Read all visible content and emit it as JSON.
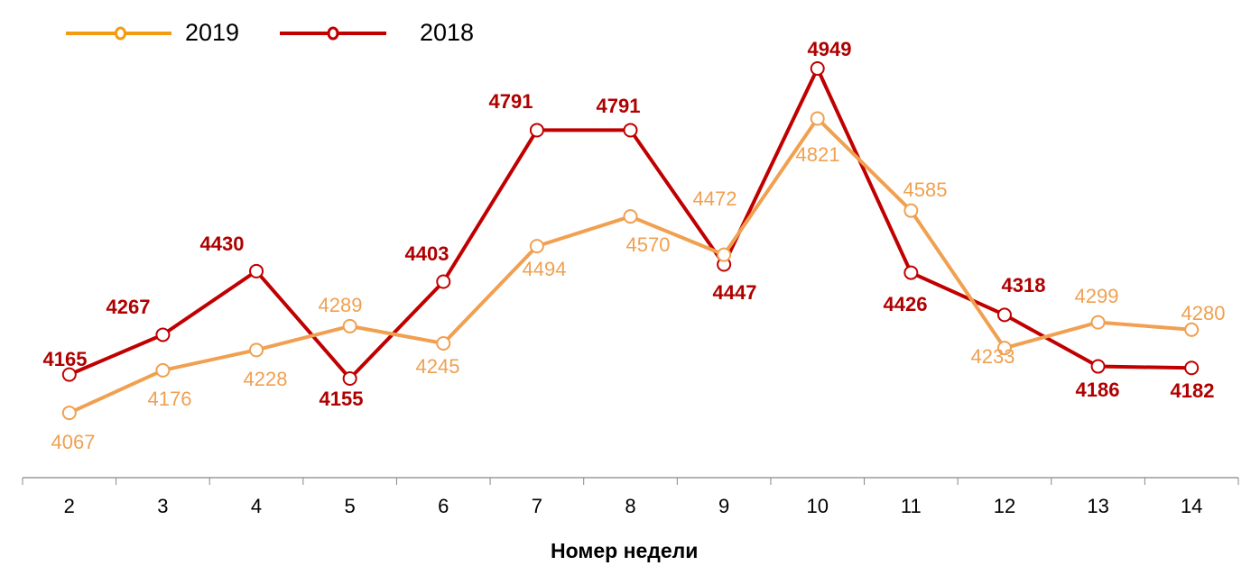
{
  "legend": {
    "items": [
      {
        "label": "2019",
        "color": "#F39C12"
      },
      {
        "label": "2018",
        "color": "#C00000"
      }
    ]
  },
  "axis": {
    "xlabel": "Номер недели"
  },
  "colors": {
    "series_2019_line": "#F0A050",
    "series_2019_legend": "#F39C12",
    "series_2018": "#C00000",
    "label_2019": "#F0A050",
    "label_2018": "#B00000",
    "axis": "#888888"
  },
  "chart_data": {
    "type": "line",
    "title": "",
    "xlabel": "Номер недели",
    "ylabel": "",
    "categories": [
      "2",
      "3",
      "4",
      "5",
      "6",
      "7",
      "8",
      "9",
      "10",
      "11",
      "12",
      "13",
      "14"
    ],
    "series": [
      {
        "name": "2019",
        "values": [
          4067,
          4176,
          4228,
          4289,
          4245,
          4494,
          4570,
          4472,
          4821,
          4585,
          4233,
          4299,
          4280
        ]
      },
      {
        "name": "2018",
        "values": [
          4165,
          4267,
          4430,
          4155,
          4403,
          4791,
          4791,
          4447,
          4949,
          4426,
          4318,
          4186,
          4182
        ]
      }
    ],
    "ylim": [
      3850,
      5000
    ],
    "grid": false,
    "legend_position": "top-left",
    "data_labels": true
  }
}
